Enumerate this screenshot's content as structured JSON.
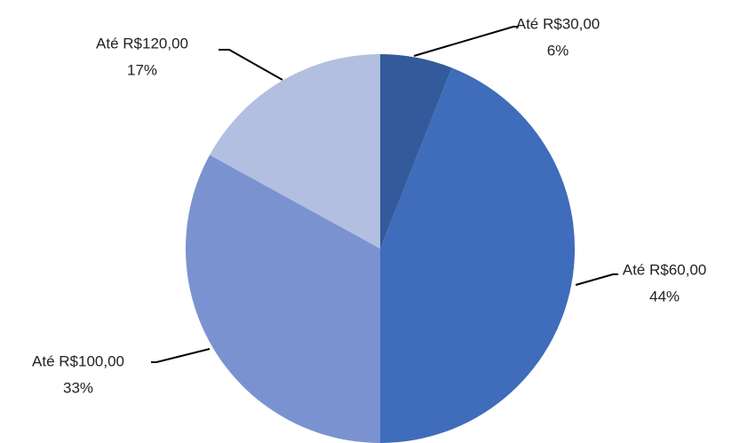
{
  "chart_data": {
    "type": "pie",
    "categories": [
      "Até R$30,00",
      "Até R$60,00",
      "Até R$100,00",
      "Até R$120,00"
    ],
    "values": [
      6,
      44,
      33,
      17
    ],
    "value_labels": [
      "6%",
      "44%",
      "33%",
      "17%"
    ],
    "colors": [
      "#335a9a",
      "#3f6cbb",
      "#7a93d0",
      "#b2bfe0"
    ]
  }
}
